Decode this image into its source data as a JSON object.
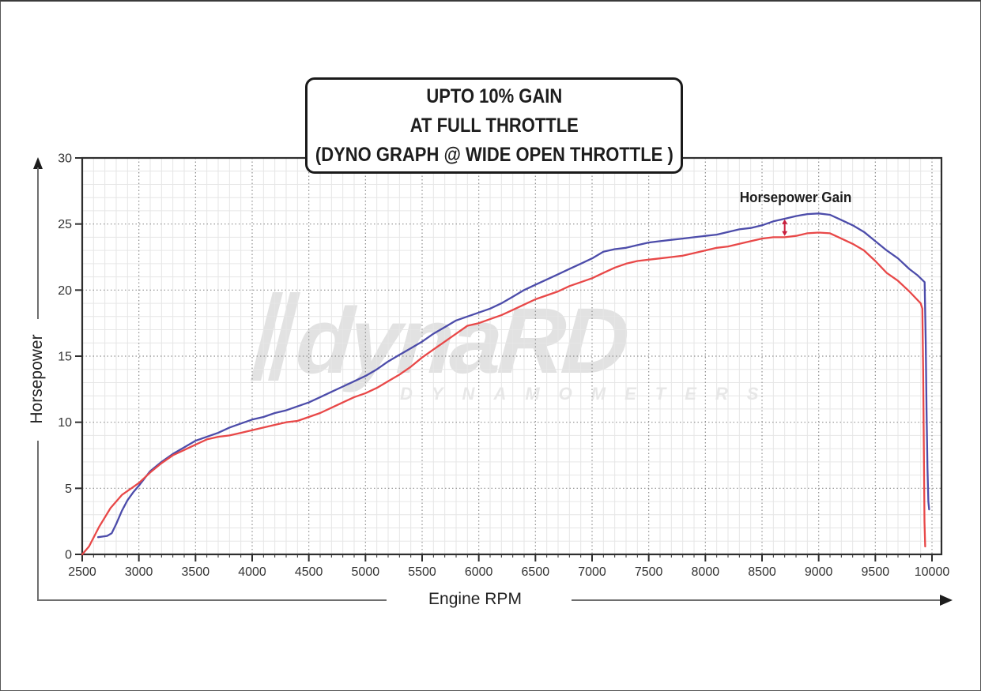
{
  "page": {
    "title_box": {
      "line1": "UPTO 10% GAIN",
      "line2": "AT FULL THROTTLE",
      "line3": "(DYNO GRAPH @ WIDE OPEN THROTTLE )"
    },
    "watermark": {
      "logo": "dynaRD",
      "sub": "DYNAMOMETERS"
    }
  },
  "chart_data": {
    "type": "line",
    "title": "UPTO 10% GAIN AT FULL THROTTLE (DYNO GRAPH @ WIDE OPEN THROTTLE )",
    "xlabel": "Engine RPM",
    "ylabel": "Horsepower",
    "xlim": [
      2500,
      10085
    ],
    "ylim": [
      0,
      30
    ],
    "x_ticks": [
      2500,
      3000,
      3500,
      4000,
      4500,
      5000,
      5500,
      6000,
      6500,
      7000,
      7500,
      8000,
      8500,
      9000,
      9500,
      10000
    ],
    "y_ticks": [
      0,
      5,
      10,
      15,
      20,
      25,
      30
    ],
    "x_minor_step": 100,
    "y_minor_step": 1,
    "grid": "minor light solid + major dotted",
    "legend": "none",
    "colors": {
      "blue_curve": "#4c4caa",
      "red_curve": "#e84848",
      "grid_major": "#8f8f8f",
      "grid_minor": "#e6e6e6",
      "frame": "#2e2e2e",
      "gain_arrow": "#c81e3c"
    },
    "series": [
      {
        "name": "blue-curve-upper",
        "color": "#4c4caa",
        "points": [
          [
            2640,
            1.3
          ],
          [
            2720,
            1.4
          ],
          [
            2760,
            1.6
          ],
          [
            2800,
            2.3
          ],
          [
            2850,
            3.3
          ],
          [
            2900,
            4.1
          ],
          [
            2950,
            4.7
          ],
          [
            3000,
            5.2
          ],
          [
            3100,
            6.3
          ],
          [
            3200,
            7.0
          ],
          [
            3300,
            7.6
          ],
          [
            3400,
            8.1
          ],
          [
            3500,
            8.6
          ],
          [
            3600,
            8.9
          ],
          [
            3700,
            9.2
          ],
          [
            3800,
            9.6
          ],
          [
            3900,
            9.9
          ],
          [
            4000,
            10.2
          ],
          [
            4100,
            10.4
          ],
          [
            4200,
            10.7
          ],
          [
            4300,
            10.9
          ],
          [
            4400,
            11.2
          ],
          [
            4500,
            11.5
          ],
          [
            4600,
            11.9
          ],
          [
            4700,
            12.3
          ],
          [
            4800,
            12.7
          ],
          [
            4900,
            13.1
          ],
          [
            5000,
            13.5
          ],
          [
            5100,
            14.0
          ],
          [
            5200,
            14.6
          ],
          [
            5300,
            15.1
          ],
          [
            5400,
            15.6
          ],
          [
            5500,
            16.1
          ],
          [
            5600,
            16.7
          ],
          [
            5700,
            17.2
          ],
          [
            5800,
            17.7
          ],
          [
            5900,
            18.0
          ],
          [
            6000,
            18.3
          ],
          [
            6100,
            18.6
          ],
          [
            6200,
            19.0
          ],
          [
            6300,
            19.5
          ],
          [
            6400,
            20.0
          ],
          [
            6500,
            20.4
          ],
          [
            6600,
            20.8
          ],
          [
            6700,
            21.2
          ],
          [
            6800,
            21.6
          ],
          [
            6900,
            22.0
          ],
          [
            7000,
            22.4
          ],
          [
            7100,
            22.9
          ],
          [
            7200,
            23.1
          ],
          [
            7300,
            23.2
          ],
          [
            7400,
            23.4
          ],
          [
            7500,
            23.6
          ],
          [
            7600,
            23.7
          ],
          [
            7700,
            23.8
          ],
          [
            7800,
            23.9
          ],
          [
            7900,
            24.0
          ],
          [
            8000,
            24.1
          ],
          [
            8100,
            24.2
          ],
          [
            8200,
            24.4
          ],
          [
            8300,
            24.6
          ],
          [
            8400,
            24.7
          ],
          [
            8500,
            24.9
          ],
          [
            8600,
            25.2
          ],
          [
            8700,
            25.4
          ],
          [
            8800,
            25.6
          ],
          [
            8900,
            25.75
          ],
          [
            9000,
            25.8
          ],
          [
            9100,
            25.7
          ],
          [
            9200,
            25.3
          ],
          [
            9300,
            24.9
          ],
          [
            9400,
            24.4
          ],
          [
            9500,
            23.7
          ],
          [
            9600,
            23.0
          ],
          [
            9700,
            22.4
          ],
          [
            9800,
            21.6
          ],
          [
            9875,
            21.1
          ],
          [
            9935,
            20.6
          ],
          [
            9945,
            16.0
          ],
          [
            9952,
            11.0
          ],
          [
            9960,
            6.5
          ],
          [
            9968,
            4.0
          ],
          [
            9975,
            3.4
          ]
        ]
      },
      {
        "name": "red-curve-lower",
        "color": "#e84848",
        "points": [
          [
            2500,
            0
          ],
          [
            2560,
            0.6
          ],
          [
            2650,
            2.1
          ],
          [
            2750,
            3.5
          ],
          [
            2850,
            4.5
          ],
          [
            2950,
            5.1
          ],
          [
            3000,
            5.4
          ],
          [
            3100,
            6.2
          ],
          [
            3200,
            6.9
          ],
          [
            3300,
            7.5
          ],
          [
            3400,
            7.9
          ],
          [
            3500,
            8.3
          ],
          [
            3600,
            8.7
          ],
          [
            3700,
            8.9
          ],
          [
            3800,
            9.0
          ],
          [
            3900,
            9.2
          ],
          [
            4000,
            9.4
          ],
          [
            4100,
            9.6
          ],
          [
            4200,
            9.8
          ],
          [
            4300,
            10.0
          ],
          [
            4400,
            10.1
          ],
          [
            4500,
            10.4
          ],
          [
            4600,
            10.7
          ],
          [
            4700,
            11.1
          ],
          [
            4800,
            11.5
          ],
          [
            4900,
            11.9
          ],
          [
            5000,
            12.2
          ],
          [
            5100,
            12.6
          ],
          [
            5200,
            13.1
          ],
          [
            5300,
            13.6
          ],
          [
            5400,
            14.2
          ],
          [
            5500,
            14.9
          ],
          [
            5600,
            15.5
          ],
          [
            5700,
            16.1
          ],
          [
            5800,
            16.7
          ],
          [
            5900,
            17.3
          ],
          [
            6000,
            17.5
          ],
          [
            6100,
            17.8
          ],
          [
            6200,
            18.1
          ],
          [
            6300,
            18.5
          ],
          [
            6400,
            18.9
          ],
          [
            6500,
            19.3
          ],
          [
            6600,
            19.6
          ],
          [
            6700,
            19.9
          ],
          [
            6800,
            20.3
          ],
          [
            6900,
            20.6
          ],
          [
            7000,
            20.9
          ],
          [
            7100,
            21.3
          ],
          [
            7200,
            21.7
          ],
          [
            7300,
            22.0
          ],
          [
            7400,
            22.2
          ],
          [
            7500,
            22.3
          ],
          [
            7600,
            22.4
          ],
          [
            7700,
            22.5
          ],
          [
            7800,
            22.6
          ],
          [
            7900,
            22.8
          ],
          [
            8000,
            23.0
          ],
          [
            8100,
            23.2
          ],
          [
            8200,
            23.3
          ],
          [
            8300,
            23.5
          ],
          [
            8400,
            23.7
          ],
          [
            8500,
            23.9
          ],
          [
            8600,
            24.0
          ],
          [
            8700,
            24.0
          ],
          [
            8800,
            24.1
          ],
          [
            8900,
            24.3
          ],
          [
            9000,
            24.35
          ],
          [
            9100,
            24.3
          ],
          [
            9200,
            23.9
          ],
          [
            9300,
            23.5
          ],
          [
            9400,
            23.0
          ],
          [
            9500,
            22.2
          ],
          [
            9600,
            21.3
          ],
          [
            9700,
            20.7
          ],
          [
            9800,
            19.9
          ],
          [
            9900,
            19.0
          ],
          [
            9915,
            18.6
          ],
          [
            9922,
            14.0
          ],
          [
            9928,
            8.0
          ],
          [
            9934,
            2.5
          ],
          [
            9940,
            0.6
          ]
        ]
      }
    ],
    "annotation": {
      "label": "Horsepower Gain",
      "arrow_x": 8700,
      "arrow_y_from": 24.1,
      "arrow_y_to": 25.35
    }
  }
}
